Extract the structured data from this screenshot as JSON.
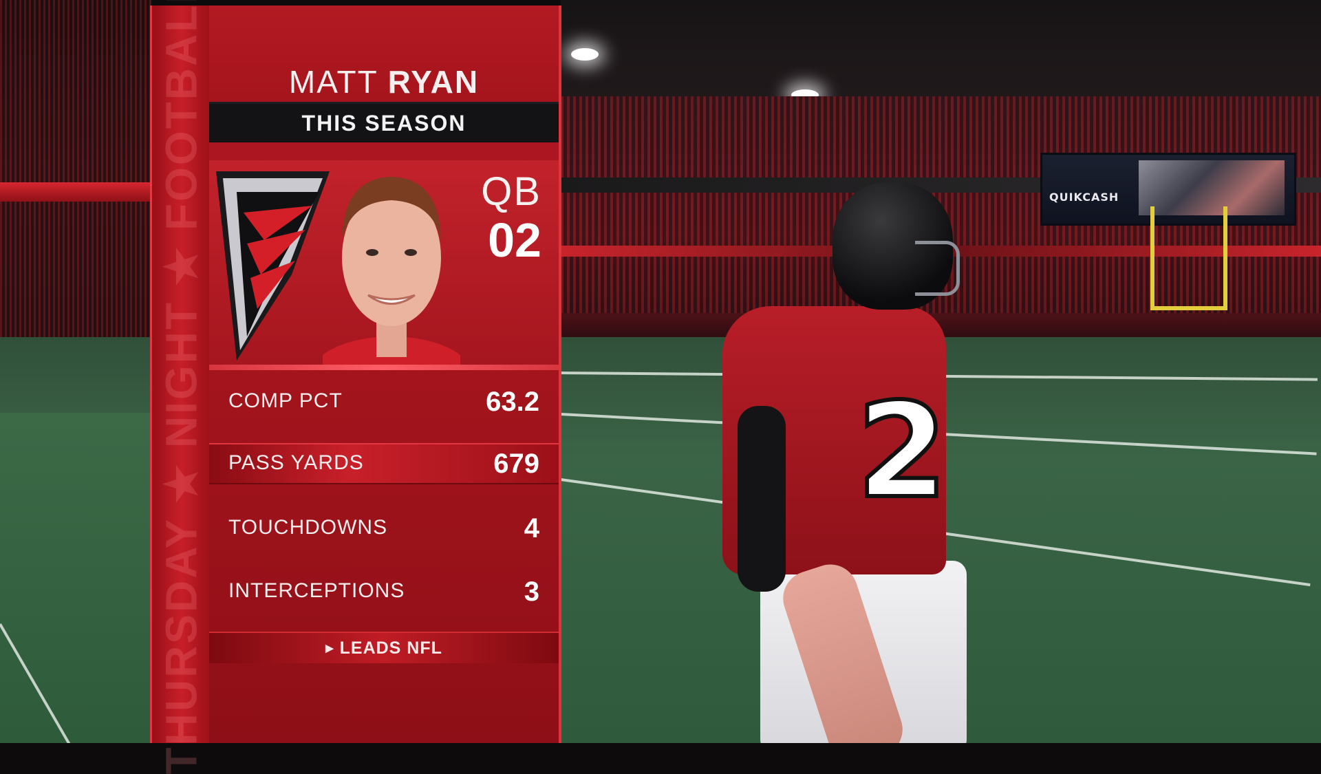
{
  "graphic": {
    "side_banner": "THURSDAY ★ NIGHT ★ FOOTBALL",
    "player_first_name": "MATT",
    "player_last_name": "RYAN",
    "subtitle": "THIS SEASON",
    "position": "QB",
    "jersey_number": "02",
    "stats": [
      {
        "label": "COMP PCT",
        "value": "63.2"
      },
      {
        "label": "PASS YARDS",
        "value": "679"
      },
      {
        "label": "TOUCHDOWNS",
        "value": "4"
      },
      {
        "label": "INTERCEPTIONS",
        "value": "3"
      }
    ],
    "footnote_marker": "▶",
    "footnote": "LEADS NFL"
  },
  "scene": {
    "jumbotron_text": "QUIKCASH",
    "player_number_on_field": "2"
  },
  "colors": {
    "panel_red": "#b01821",
    "highlight_red": "#c8202a",
    "season_bar": "#131316",
    "text": "#ffffff"
  }
}
